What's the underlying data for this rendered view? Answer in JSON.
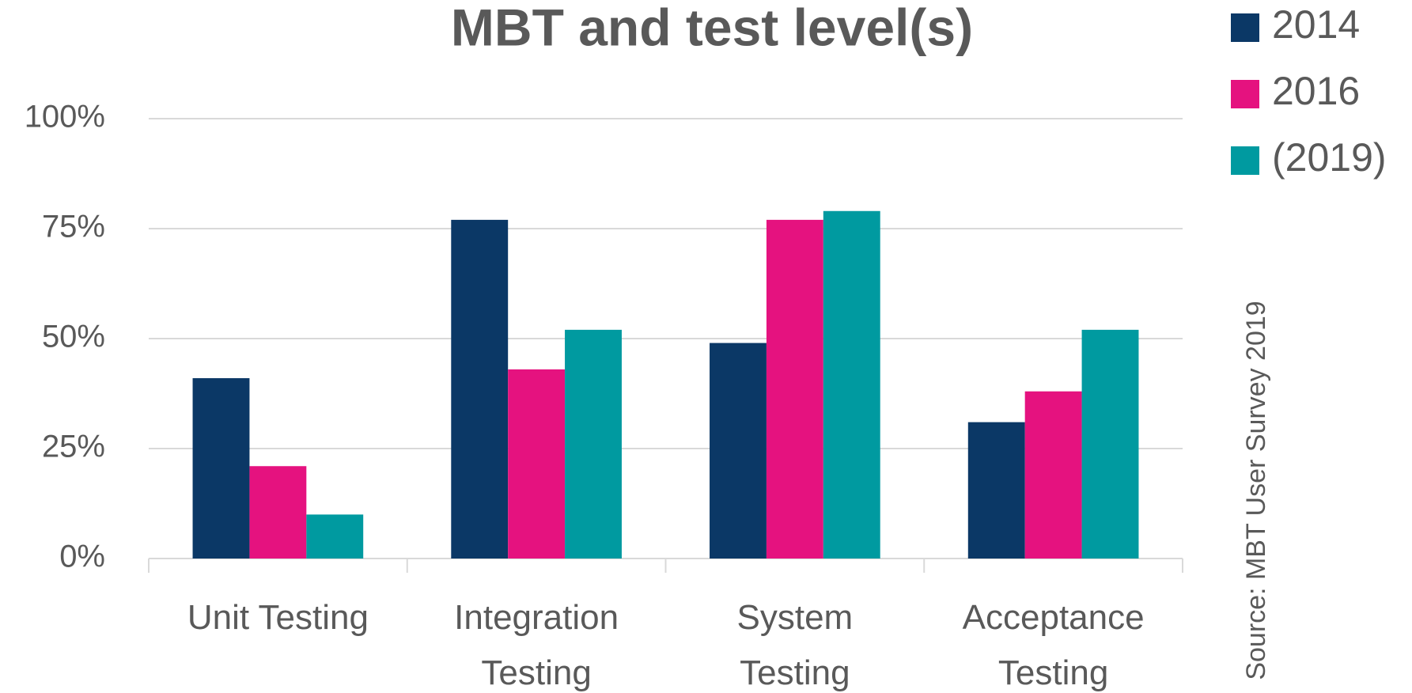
{
  "chart_data": {
    "type": "bar",
    "title": "MBT and test level(s)",
    "categories": [
      "Unit Testing",
      "Integration Testing",
      "System Testing",
      "Acceptance Testing"
    ],
    "series": [
      {
        "name": "2014",
        "color": "#0b3866",
        "values": [
          41,
          77,
          49,
          31
        ]
      },
      {
        "name": "2016",
        "color": "#e5127f",
        "values": [
          21,
          43,
          77,
          38
        ]
      },
      {
        "name": "(2019)",
        "color": "#009aa0",
        "values": [
          10,
          52,
          79,
          52
        ]
      }
    ],
    "ylim": [
      0,
      100
    ],
    "yticks": [
      {
        "value": 0,
        "label": "0%"
      },
      {
        "value": 25,
        "label": "25%"
      },
      {
        "value": 50,
        "label": "50%"
      },
      {
        "value": 75,
        "label": "75%"
      },
      {
        "value": 100,
        "label": "100%"
      }
    ],
    "grid": true,
    "legend": "top-right",
    "annotation": "Source: MBT User Survey 2019"
  }
}
